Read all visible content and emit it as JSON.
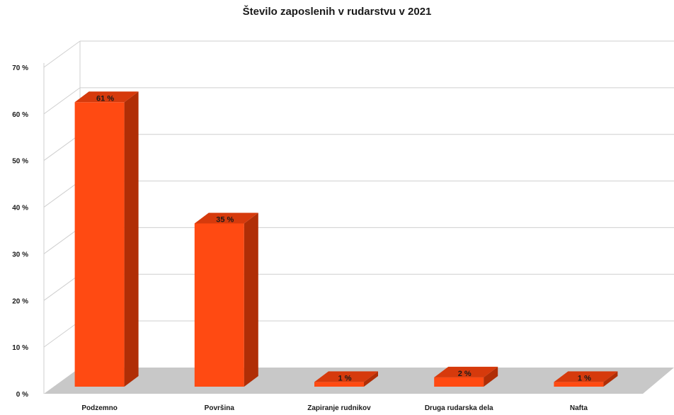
{
  "chart_data": {
    "type": "bar",
    "title": "Število zaposlenih v rudarstvu v 2021",
    "categories": [
      "Podzemno",
      "Površina",
      "Zapiranje rudnikov",
      "Druga rudarska dela",
      "Nafta"
    ],
    "values": [
      61,
      35,
      1,
      2,
      1
    ],
    "value_labels": [
      "61 %",
      "35 %",
      "1 %",
      "2 %",
      "1 %"
    ],
    "ylim": [
      0,
      70
    ],
    "yticks": [
      0,
      10,
      20,
      30,
      40,
      50,
      60,
      70
    ],
    "ytick_labels": [
      "0 %",
      "10 %",
      "20 %",
      "30 %",
      "40 %",
      "50 %",
      "60 %",
      "70 %"
    ],
    "xlabel": "",
    "ylabel": "",
    "grid": true,
    "style": "3d-column",
    "bar_color": "#ff4a12",
    "bar_side_color": "#b02e06",
    "bar_top_color": "#d63a0c",
    "floor_color": "#c8c8c8",
    "grid_color": "#cfcfcf"
  }
}
